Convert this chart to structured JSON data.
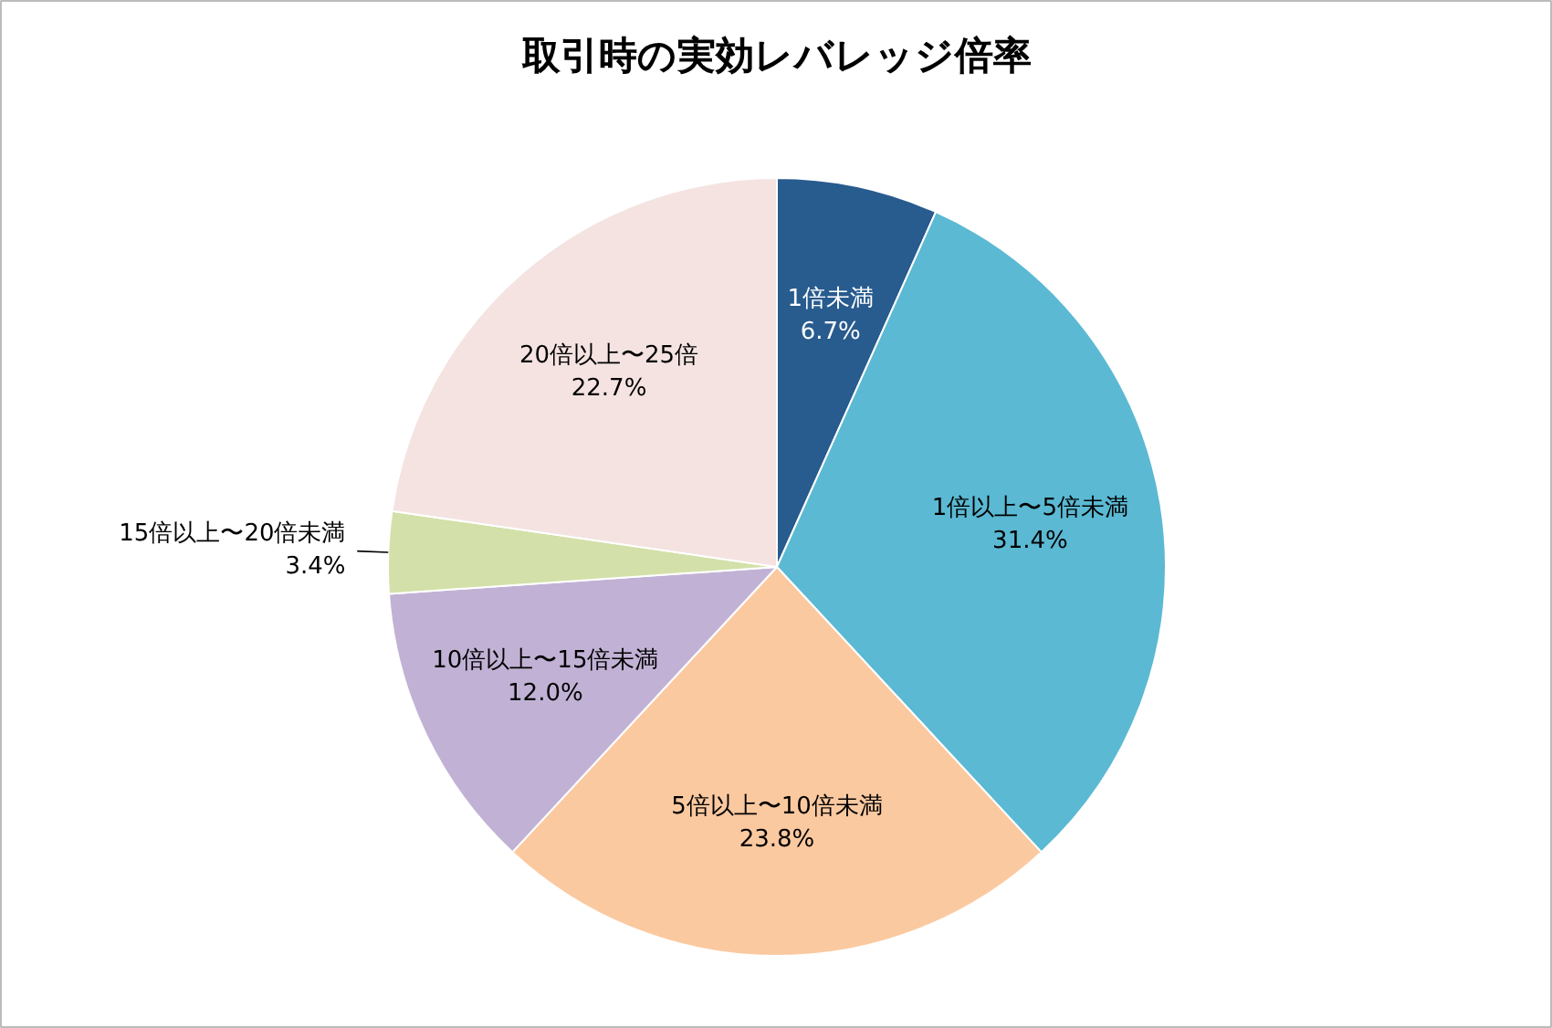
{
  "chart_data": {
    "type": "pie",
    "title": "取引時の実効レバレッジ倍率",
    "categories": [
      "1倍未満",
      "1倍以上〜5倍未満",
      "5倍以上〜10倍未満",
      "10倍以上〜15倍未満",
      "15倍以上〜20倍未満",
      "20倍以上〜25倍"
    ],
    "values": [
      6.7,
      31.4,
      23.8,
      12.0,
      3.4,
      22.7
    ],
    "value_labels": [
      "6.7%",
      "31.4%",
      "23.8%",
      "12.0%",
      "3.4%",
      "22.7%"
    ],
    "colors": [
      "#285b8e",
      "#5bb9d3",
      "#fbc9a0",
      "#c1b2d5",
      "#d3e0a9",
      "#f4e3e1"
    ]
  }
}
